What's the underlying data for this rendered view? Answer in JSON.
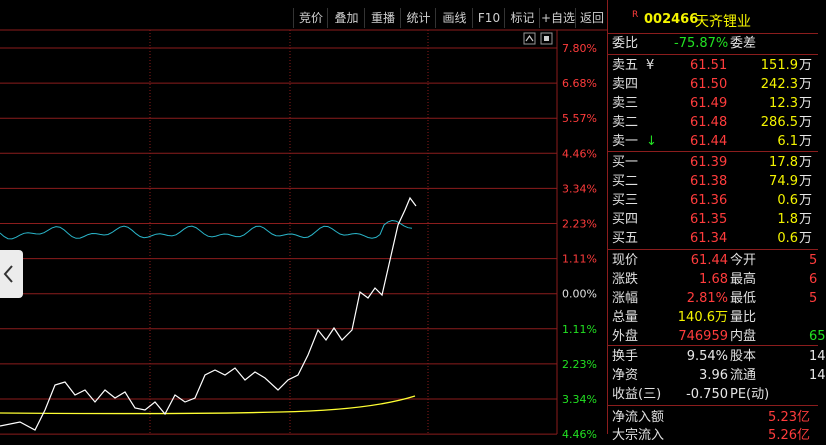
{
  "toolbar": {
    "buttons": [
      "竞价",
      "叠加",
      "重播",
      "统计",
      "画线",
      "F10",
      "标记",
      "+自选",
      "返回"
    ]
  },
  "stock": {
    "badge": "R",
    "code": "002466",
    "name": "天齐锂业"
  },
  "chart": {
    "pct_labels": [
      "7.80%",
      "6.68%",
      "5.57%",
      "4.46%",
      "3.34%",
      "2.23%",
      "1.11%",
      "0.00%",
      "1.11%",
      "2.23%",
      "3.34%",
      "4.46%"
    ],
    "colors": {
      "price": "#ffffff",
      "avg": "#ffff33",
      "ratio": "#2ab5c9",
      "grid": "#8b1d1d",
      "up": "#ff3c3c",
      "down": "#22e022"
    }
  },
  "order_book": {
    "webi": {
      "label": "委比",
      "value": "-75.87%",
      "label2": "委差"
    },
    "sell": [
      {
        "label": "卖五",
        "mark": "¥",
        "price": "61.51",
        "vol": "151.9"
      },
      {
        "label": "卖四",
        "mark": "",
        "price": "61.50",
        "vol": "242.3"
      },
      {
        "label": "卖三",
        "mark": "",
        "price": "61.49",
        "vol": "12.3"
      },
      {
        "label": "卖二",
        "mark": "",
        "price": "61.48",
        "vol": "286.5"
      },
      {
        "label": "卖一",
        "mark": "↓",
        "price": "61.44",
        "vol": "6.1"
      }
    ],
    "buy": [
      {
        "label": "买一",
        "price": "61.39",
        "vol": "17.8"
      },
      {
        "label": "买二",
        "price": "61.38",
        "vol": "74.9"
      },
      {
        "label": "买三",
        "price": "61.36",
        "vol": "0.6"
      },
      {
        "label": "买四",
        "price": "61.35",
        "vol": "1.8"
      },
      {
        "label": "买五",
        "price": "61.34",
        "vol": "0.6"
      }
    ],
    "unit": "万"
  },
  "quote": {
    "rows": [
      {
        "l1": "现价",
        "v1": "61.44",
        "l2": "今开",
        "v2": "5"
      },
      {
        "l1": "涨跌",
        "v1": "1.68",
        "l2": "最高",
        "v2": "6"
      },
      {
        "l1": "涨幅",
        "v1": "2.81%",
        "l2": "最低",
        "v2": "5"
      },
      {
        "l1": "总量",
        "v1": "140.6万",
        "l2": "量比",
        "v2": ""
      },
      {
        "l1": "外盘",
        "v1": "746959",
        "l2": "内盘",
        "v2": "65"
      }
    ],
    "rows2": [
      {
        "l1": "换手",
        "v1": "9.54%",
        "l2": "股本",
        "v2": "14"
      },
      {
        "l1": "净资",
        "v1": "3.96",
        "l2": "流通",
        "v2": "14"
      },
      {
        "l1": "收益(三)",
        "v1": "-0.750",
        "l2": "PE(动)",
        "v2": ""
      }
    ],
    "flow": {
      "label": "净流入额",
      "value": "5.23亿"
    },
    "flow2": {
      "label": "大宗流入",
      "value": "5.26亿"
    }
  }
}
